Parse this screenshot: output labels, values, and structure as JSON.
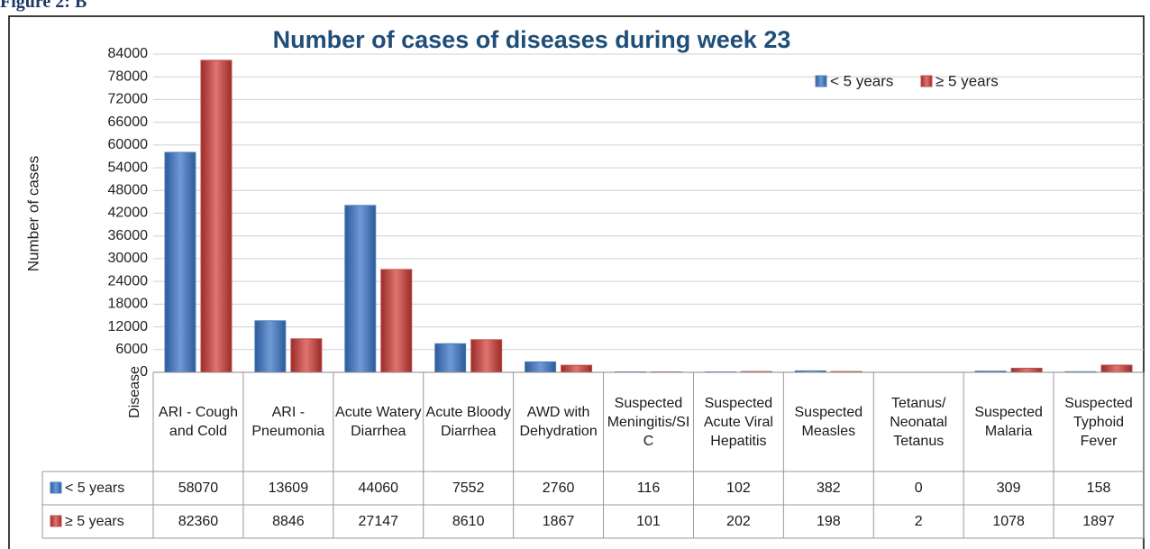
{
  "figure_label": "Figure 2: B",
  "chart_data": {
    "type": "bar",
    "title": "Number of cases of diseases during week 23",
    "y_label": "Number of cases",
    "x_label": "Disease",
    "categories": [
      "ARI - Cough and Cold",
      "ARI - Pneumonia",
      "Acute Watery Diarrhea",
      "Acute Bloody Diarrhea",
      "AWD with Dehydration",
      "Suspected Meningitis/SIC",
      "Suspected Acute Viral Hepatitis",
      "Suspected Measles",
      "Tetanus/ Neonatal Tetanus",
      "Suspected Malaria",
      "Suspected Typhoid Fever"
    ],
    "series": [
      {
        "name": "< 5 years",
        "color": "#4f81bd",
        "values": [
          58070,
          13609,
          44060,
          7552,
          2760,
          116,
          102,
          382,
          0,
          309,
          158
        ]
      },
      {
        "name": "≥ 5 years",
        "color": "#c0504d",
        "values": [
          82360,
          8846,
          27147,
          8610,
          1867,
          101,
          202,
          198,
          2,
          1078,
          1897
        ]
      }
    ],
    "ylim": [
      0,
      84000
    ],
    "yticks": [
      0,
      6000,
      12000,
      18000,
      24000,
      30000,
      36000,
      42000,
      48000,
      54000,
      60000,
      66000,
      72000,
      78000,
      84000
    ],
    "grid": true,
    "legend": "top-right",
    "data_table": true
  }
}
